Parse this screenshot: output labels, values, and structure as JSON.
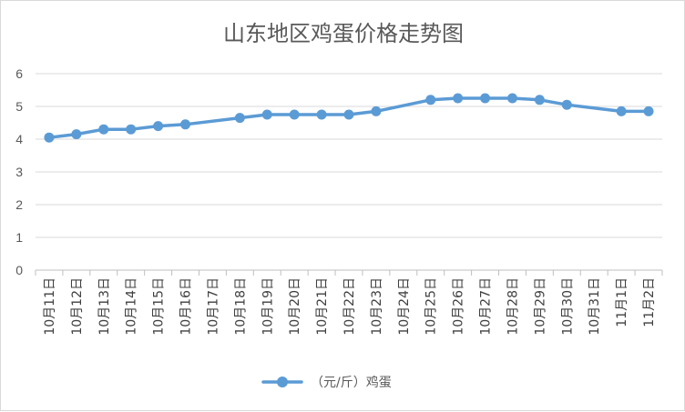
{
  "chart_data": {
    "type": "line",
    "title": "山东地区鸡蛋价格走势图",
    "xlabel": "",
    "ylabel": "",
    "ylim": [
      0,
      6
    ],
    "yticks": [
      0,
      1,
      2,
      3,
      4,
      5,
      6
    ],
    "grid": true,
    "legend_position": "bottom",
    "line_color": "#5b9bd5",
    "categories": [
      "10月11日",
      "10月12日",
      "10月13日",
      "10月14日",
      "10月15日",
      "10月16日",
      "10月17日",
      "10月18日",
      "10月19日",
      "10月20日",
      "10月21日",
      "10月22日",
      "10月23日",
      "10月24日",
      "10月25日",
      "10月26日",
      "10月27日",
      "10月28日",
      "10月29日",
      "10月30日",
      "10月31日",
      "11月1日",
      "11月2日"
    ],
    "series": [
      {
        "name": "（元/斤）鸡蛋",
        "values": [
          4.05,
          4.15,
          4.3,
          4.3,
          4.4,
          4.45,
          null,
          4.65,
          4.75,
          4.75,
          4.75,
          4.75,
          4.85,
          null,
          5.2,
          5.25,
          5.25,
          5.25,
          5.2,
          5.05,
          null,
          4.85,
          4.85
        ]
      }
    ]
  }
}
